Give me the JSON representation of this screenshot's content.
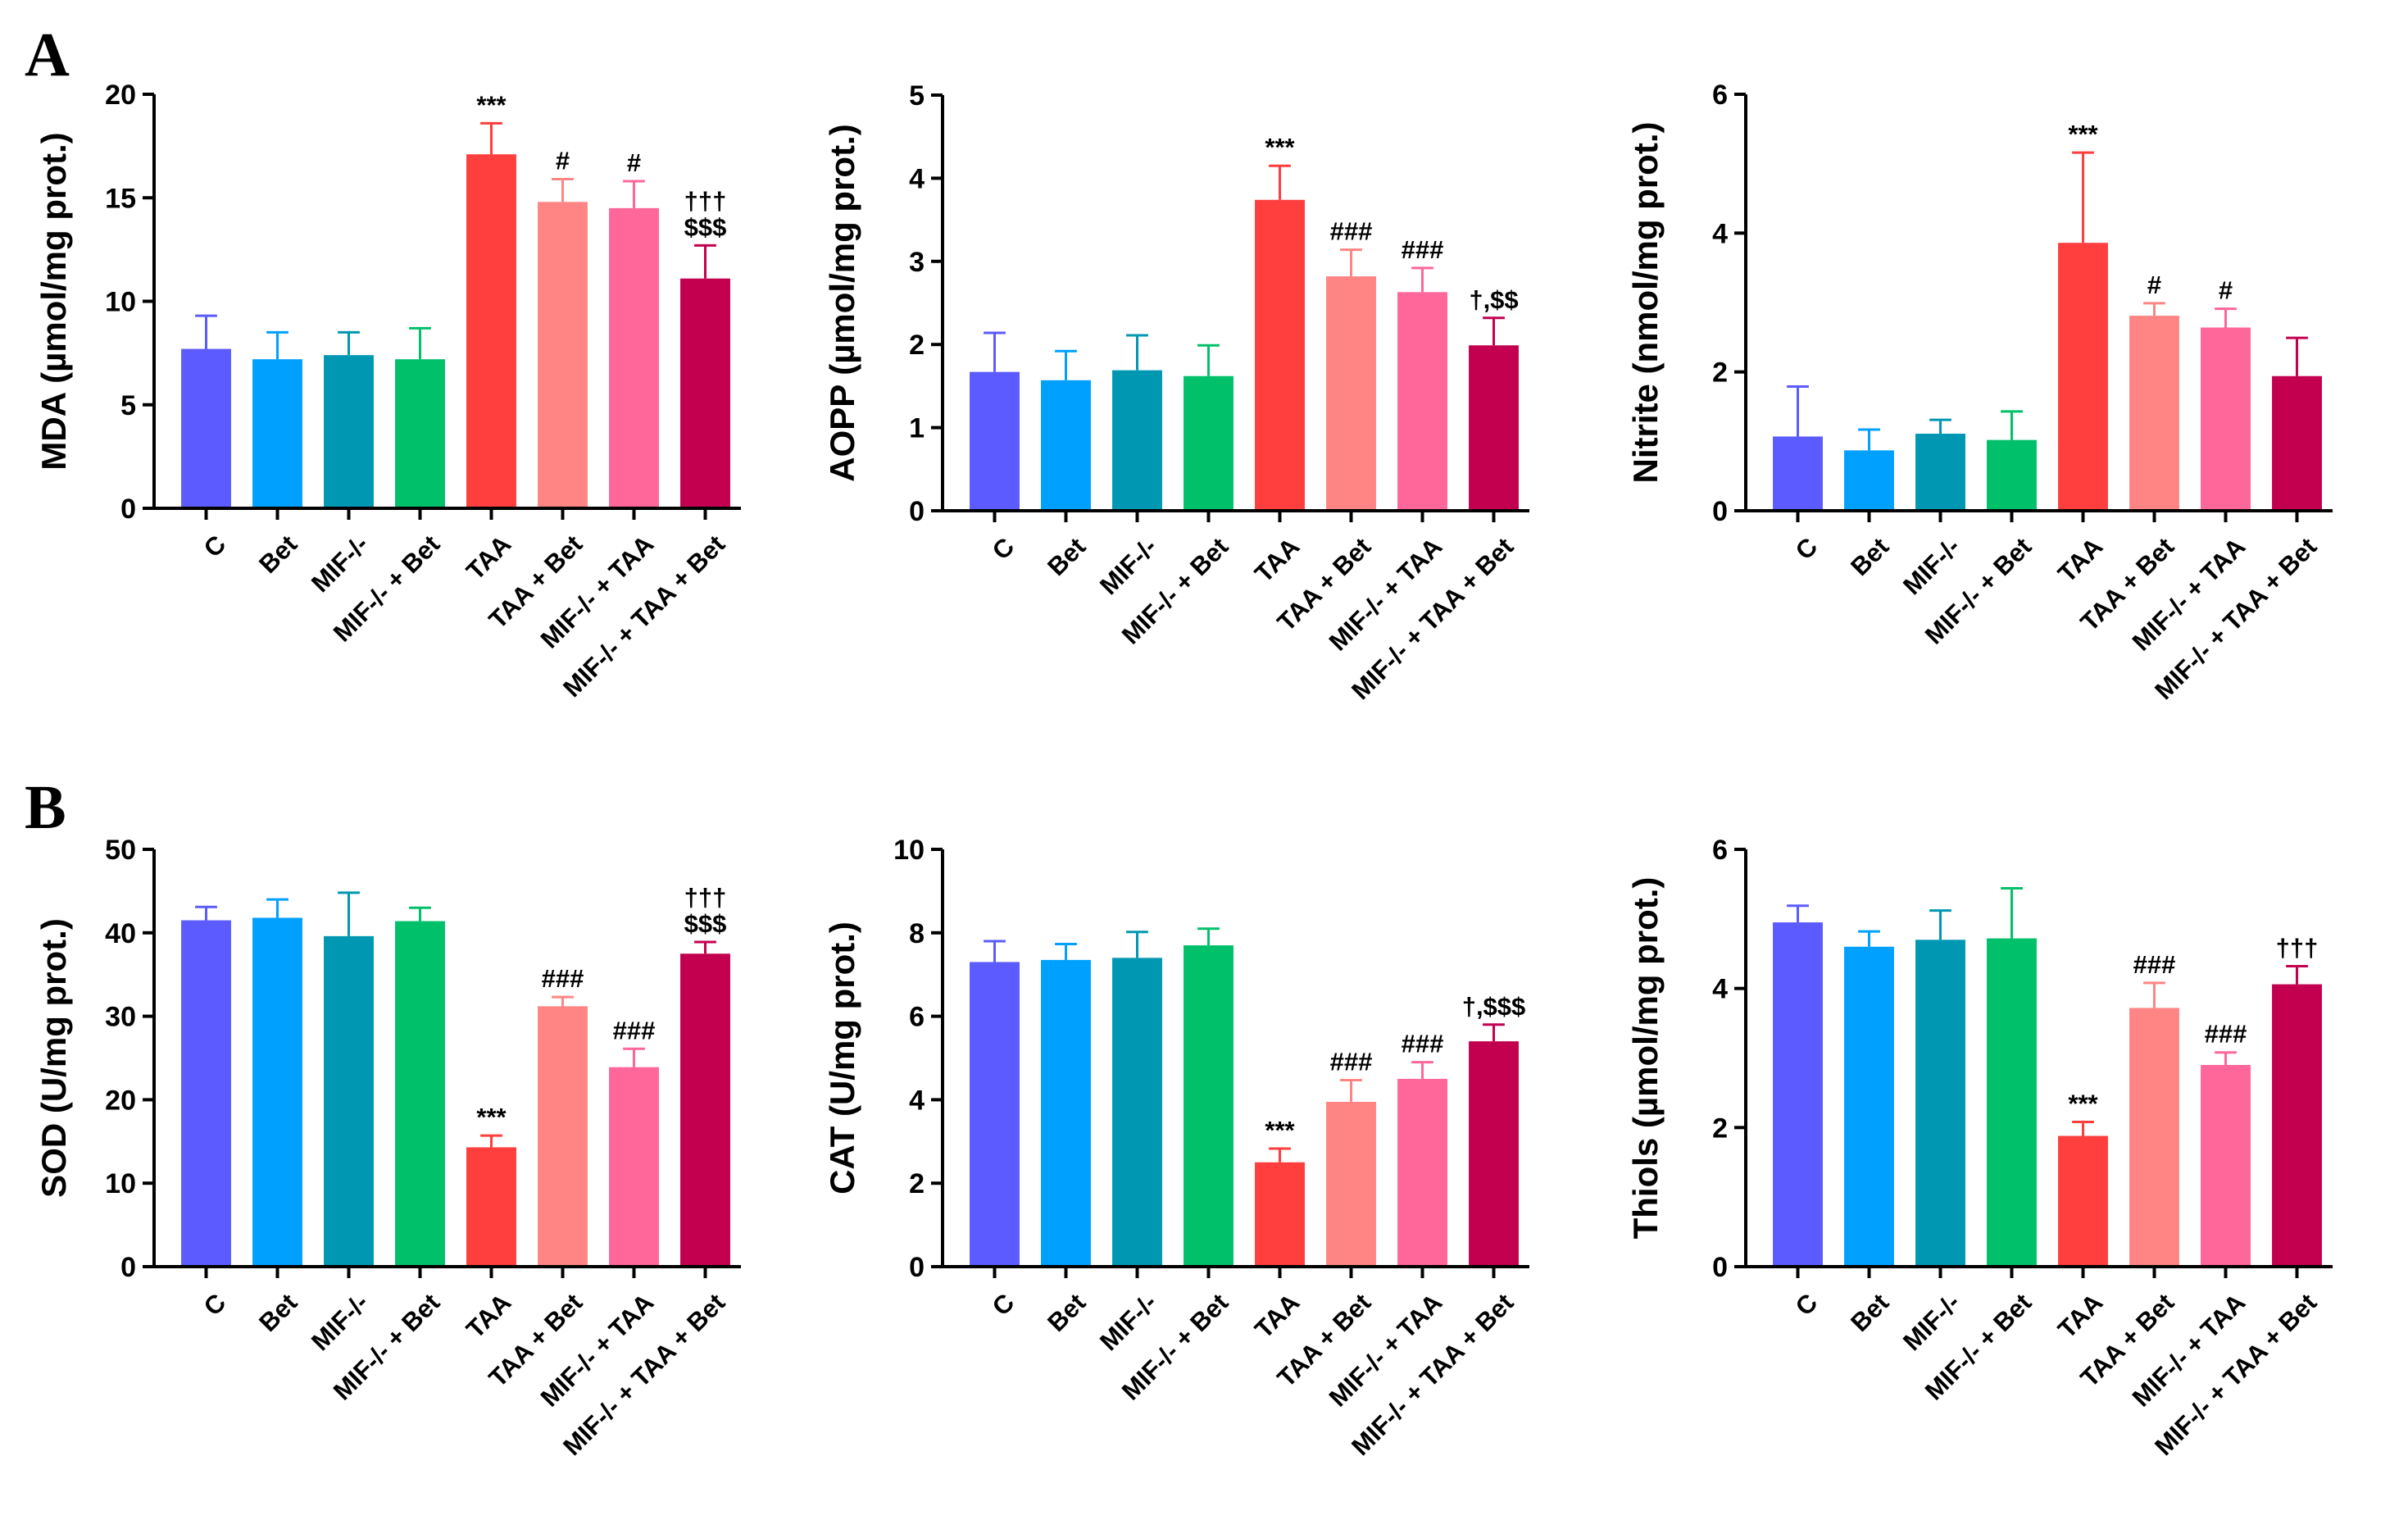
{
  "panel_labels": [
    "A",
    "B"
  ],
  "groups": [
    "C",
    "Bet",
    "MIF-/-",
    "MIF-/- + Bet",
    "TAA",
    "TAA + Bet",
    "MIF-/- + TAA",
    "MIF-/- + TAA + Bet"
  ],
  "colors": [
    "#5b5bff",
    "#00a0ff",
    "#0097b2",
    "#00c06a",
    "#ff3e3e",
    "#ff8585",
    "#ff6699",
    "#c2004f"
  ],
  "chart_data": [
    {
      "type": "bar",
      "panel": "A",
      "ylabel": "MDA (µmol/mg prot.)",
      "ylim": [
        0,
        20
      ],
      "yticks": [
        "0",
        "5",
        "10",
        "15",
        "20"
      ],
      "categories": [
        "C",
        "Bet",
        "MIF-/-",
        "MIF-/- + Bet",
        "TAA",
        "TAA + Bet",
        "MIF-/- + TAA",
        "MIF-/- + TAA + Bet"
      ],
      "values": [
        7.7,
        7.2,
        7.4,
        7.2,
        17.1,
        14.8,
        14.5,
        11.1
      ],
      "errors": [
        1.6,
        1.3,
        1.1,
        1.5,
        1.5,
        1.1,
        1.3,
        1.6
      ],
      "annotations": [
        [],
        [],
        [],
        [],
        [
          "***"
        ],
        [
          "#"
        ],
        [
          "#"
        ],
        [
          "†††",
          "$$$"
        ]
      ]
    },
    {
      "type": "bar",
      "panel": "A",
      "ylabel": "AOPP (µmol/mg prot.)",
      "ylim": [
        0,
        5
      ],
      "yticks": [
        "0",
        "1",
        "2",
        "3",
        "4",
        "5"
      ],
      "categories": [
        "C",
        "Bet",
        "MIF-/-",
        "MIF-/- + Bet",
        "TAA",
        "TAA + Bet",
        "MIF-/- + TAA",
        "MIF-/- + TAA + Bet"
      ],
      "values": [
        1.67,
        1.57,
        1.69,
        1.62,
        3.74,
        2.82,
        2.63,
        1.99
      ],
      "errors": [
        0.47,
        0.35,
        0.42,
        0.37,
        0.41,
        0.32,
        0.29,
        0.33
      ],
      "annotations": [
        [],
        [],
        [],
        [],
        [
          "***"
        ],
        [
          "###"
        ],
        [
          "###"
        ],
        [
          "†,$$"
        ]
      ]
    },
    {
      "type": "bar",
      "panel": "A",
      "ylabel": "Nitrite (nmol/mg prot.)",
      "ylim": [
        0,
        6
      ],
      "yticks": [
        "0",
        "2",
        "4",
        "6"
      ],
      "categories": [
        "C",
        "Bet",
        "MIF-/-",
        "MIF-/- + Bet",
        "TAA",
        "TAA + Bet",
        "MIF-/- + TAA",
        "MIF-/- + TAA + Bet"
      ],
      "values": [
        1.07,
        0.87,
        1.11,
        1.02,
        3.86,
        2.81,
        2.64,
        1.94
      ],
      "errors": [
        0.72,
        0.3,
        0.2,
        0.41,
        1.3,
        0.18,
        0.27,
        0.55
      ],
      "annotations": [
        [],
        [],
        [],
        [],
        [
          "***"
        ],
        [
          "#"
        ],
        [
          "#"
        ],
        []
      ]
    },
    {
      "type": "bar",
      "panel": "B",
      "ylabel": "SOD (U/mg prot.)",
      "ylim": [
        0,
        50
      ],
      "yticks": [
        "0",
        "10",
        "20",
        "30",
        "40",
        "50"
      ],
      "categories": [
        "C",
        "Bet",
        "MIF-/-",
        "MIF-/- + Bet",
        "TAA",
        "TAA + Bet",
        "MIF-/- + TAA",
        "MIF-/- + TAA + Bet"
      ],
      "values": [
        41.5,
        41.8,
        39.6,
        41.4,
        14.3,
        31.2,
        23.9,
        37.5
      ],
      "errors": [
        1.6,
        2.2,
        5.2,
        1.6,
        1.4,
        1.1,
        2.2,
        1.4
      ],
      "annotations": [
        [],
        [],
        [],
        [],
        [
          "***"
        ],
        [
          "###"
        ],
        [
          "###"
        ],
        [
          "†††",
          "$$$"
        ]
      ]
    },
    {
      "type": "bar",
      "panel": "B",
      "ylabel": "CAT (U/mg prot.)",
      "ylim": [
        0,
        10
      ],
      "yticks": [
        "0",
        "2",
        "4",
        "6",
        "8",
        "10"
      ],
      "categories": [
        "C",
        "Bet",
        "MIF-/-",
        "MIF-/- + Bet",
        "TAA",
        "TAA + Bet",
        "MIF-/- + TAA",
        "MIF-/- + TAA + Bet"
      ],
      "values": [
        7.3,
        7.35,
        7.4,
        7.7,
        2.5,
        3.95,
        4.5,
        5.4
      ],
      "errors": [
        0.5,
        0.38,
        0.62,
        0.4,
        0.33,
        0.52,
        0.4,
        0.4
      ],
      "annotations": [
        [],
        [],
        [],
        [],
        [
          "***"
        ],
        [
          "###"
        ],
        [
          "###"
        ],
        [
          "†,$$$"
        ]
      ]
    },
    {
      "type": "bar",
      "panel": "B",
      "ylabel": "Thiols (µmol/mg prot.)",
      "ylim": [
        0,
        6
      ],
      "yticks": [
        "0",
        "2",
        "4",
        "6"
      ],
      "categories": [
        "C",
        "Bet",
        "MIF-/-",
        "MIF-/- + Bet",
        "TAA",
        "TAA + Bet",
        "MIF-/- + TAA",
        "MIF-/- + TAA + Bet"
      ],
      "values": [
        4.95,
        4.6,
        4.7,
        4.72,
        1.88,
        3.72,
        2.9,
        4.06
      ],
      "errors": [
        0.24,
        0.22,
        0.42,
        0.72,
        0.2,
        0.36,
        0.18,
        0.26
      ],
      "annotations": [
        [],
        [],
        [],
        [],
        [
          "***"
        ],
        [
          "###"
        ],
        [
          "###"
        ],
        [
          "†††"
        ]
      ]
    }
  ]
}
